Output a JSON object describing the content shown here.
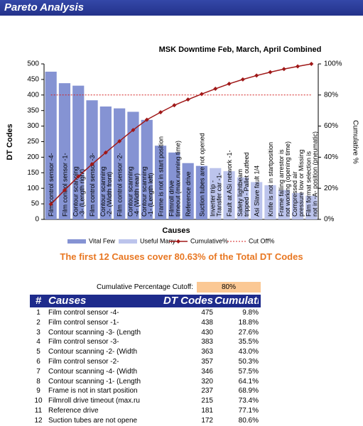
{
  "header": {
    "title": "Pareto Analysis"
  },
  "chart_data": {
    "type": "bar",
    "title": "MSK Downtime Feb, March, April Combined",
    "x_label": "Causes",
    "y_label": "DT Codes",
    "y2_label": "Cumulative %",
    "categories": [
      "Film control sensor -4-",
      "Film control sensor -1-",
      "Contour scanning -3- (Length right)",
      "Film control sensor -3-",
      "Contour scanning -2- (Width front)",
      "Film control sensor -2-",
      "Contour scanning -4- (Width rear)",
      "Contour scanning -1- (Length left)",
      "Frame is not in start position",
      "Filmroll drive timeout (max.running time)",
      "Reference drive",
      "Suction tubes are not opened",
      "Inverter trip - Transfer car -1-",
      "Fault at ASi network -1-",
      "Safety lightbeam tripped - Pallet outfeed",
      "Asi Slave fault 1/4",
      "Knife is not in startposition",
      "Frame falling arrestor is not working (opening time)",
      "Compressed air pressure low or Missing",
      "Film format selection is not in -A- position (pneumatic)"
    ],
    "series": [
      {
        "name": "Vital Few",
        "color": "#8593d3",
        "values": [
          475,
          438,
          430,
          383,
          363,
          357,
          346,
          320,
          237,
          215,
          181,
          172,
          null,
          null,
          null,
          null,
          null,
          null,
          null,
          null
        ]
      },
      {
        "name": "Useful Many",
        "color": "#bcc4ec",
        "values": [
          null,
          null,
          null,
          null,
          null,
          null,
          null,
          null,
          null,
          null,
          null,
          null,
          165,
          155,
          135,
          120,
          110,
          95,
          85,
          76
        ]
      },
      {
        "name": "Cumulative%",
        "type": "line",
        "axis": "y2",
        "color": "#a01818",
        "values": [
          9.8,
          18.8,
          27.6,
          35.5,
          43.0,
          50.3,
          57.5,
          64.1,
          68.9,
          73.4,
          77.1,
          80.6,
          84.0,
          87.2,
          90.0,
          92.5,
          94.7,
          96.7,
          98.4,
          100
        ]
      },
      {
        "name": "Cut Off%",
        "type": "line",
        "axis": "y2",
        "color": "#d42020",
        "dashed": true,
        "values": [
          80,
          80,
          80,
          80,
          80,
          80,
          80,
          80,
          80,
          80,
          80,
          80,
          80,
          80,
          80,
          80,
          80,
          80,
          80,
          80
        ]
      }
    ],
    "ylim": [
      0,
      500
    ],
    "yticks": [
      0,
      50,
      100,
      150,
      200,
      250,
      300,
      350,
      400,
      450,
      500
    ],
    "y2lim": [
      0,
      100
    ],
    "y2ticks": [
      {
        "value": 0,
        "label": "0%"
      },
      {
        "value": 20,
        "label": "20%"
      },
      {
        "value": 40,
        "label": "40%"
      },
      {
        "value": 60,
        "label": "60%"
      },
      {
        "value": 80,
        "label": "80%"
      },
      {
        "value": 100,
        "label": "100%"
      }
    ]
  },
  "summary": "The first 12 Causes cover 80.63% of the Total DT Codes",
  "cutoff": {
    "label": "Cumulative Percentage Cutoff:",
    "value": "80%"
  },
  "table": {
    "columns": [
      "#",
      "Causes",
      "DT Codes",
      "Cumulative"
    ],
    "rows": [
      [
        1,
        "Film control sensor -4-",
        475,
        "9.8%"
      ],
      [
        2,
        "Film control sensor -1-",
        438,
        "18.8%"
      ],
      [
        3,
        "Contour scanning -3- (Length",
        430,
        "27.6%"
      ],
      [
        4,
        "Film control sensor -3-",
        383,
        "35.5%"
      ],
      [
        5,
        "Contour scanning -2- (Width",
        363,
        "43.0%"
      ],
      [
        6,
        "Film control sensor -2-",
        357,
        "50.3%"
      ],
      [
        7,
        "Contour scanning -4- (Width",
        346,
        "57.5%"
      ],
      [
        8,
        "Contour scanning -1- (Length",
        320,
        "64.1%"
      ],
      [
        9,
        "Frame is not in start position",
        237,
        "68.9%"
      ],
      [
        10,
        "Filmroll drive timeout (max.ru",
        215,
        "73.4%"
      ],
      [
        11,
        "Reference drive",
        181,
        "77.1%"
      ],
      [
        12,
        "Suction tubes are not opene",
        172,
        "80.6%"
      ]
    ]
  }
}
